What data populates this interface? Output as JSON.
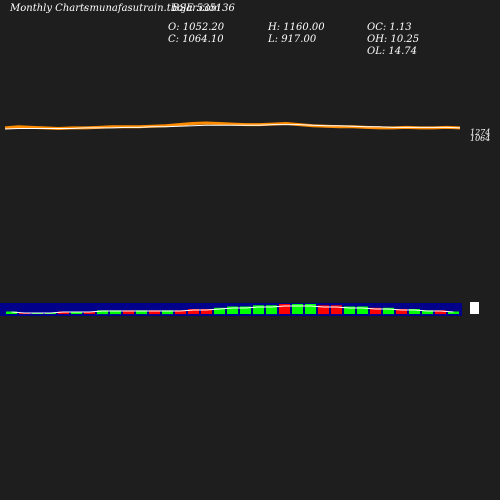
{
  "header": {
    "title": "Monthly Charts",
    "source": "- munafasutrain.tbojar.com",
    "symbol": "BSE 535136",
    "open": "O: 1052.20",
    "close": "C: 1064.10",
    "high": "H: 1160.00",
    "low": "L: 917.00",
    "oc": "OC: 1.13",
    "oh": "OH: 10.25",
    "ol": "OL: 14.74"
  },
  "right_labels": {
    "price_a": "1274",
    "price_b": "1064"
  },
  "colors": {
    "background": "#1e1e1e",
    "price_line": "#ff8c00",
    "ma_line": "#ffffff",
    "band": "#00008b",
    "up": "#00ff00",
    "down": "#ff0000"
  },
  "chart_data": [
    {
      "type": "line",
      "title": "",
      "series": [
        {
          "name": "",
          "values": [
            1064,
            1066,
            1065,
            1064,
            1063,
            1064,
            1064,
            1065,
            1066,
            1066,
            1066,
            1067,
            1068,
            1070,
            1072,
            1073,
            1072,
            1071,
            1070,
            1070,
            1071,
            1072,
            1070,
            1068,
            1067,
            1066,
            1066,
            1065,
            1064,
            1064,
            1065,
            1064,
            1064,
            1065,
            1064
          ]
        },
        {
          "name": "",
          "values": [
            1062,
            1063,
            1063,
            1063,
            1063,
            1063,
            1064,
            1064,
            1064,
            1065,
            1065,
            1066,
            1066,
            1067,
            1068,
            1069,
            1069,
            1069,
            1069,
            1069,
            1070,
            1070,
            1070,
            1069,
            1068,
            1068,
            1067,
            1066,
            1066,
            1065,
            1065,
            1065,
            1065,
            1065,
            1064
          ]
        }
      ]
    },
    {
      "type": "bar",
      "title": "volume",
      "values": [
        2,
        1,
        1,
        1,
        2,
        2,
        2,
        3,
        3,
        3,
        3,
        3,
        3,
        3,
        4,
        4,
        5,
        6,
        6,
        7,
        7,
        8,
        8,
        8,
        7,
        7,
        6,
        6,
        5,
        5,
        4,
        4,
        3,
        3,
        2
      ],
      "direction": [
        "u",
        "d",
        "u",
        "u",
        "d",
        "u",
        "d",
        "u",
        "u",
        "d",
        "u",
        "d",
        "u",
        "d",
        "d",
        "d",
        "u",
        "u",
        "u",
        "u",
        "u",
        "d",
        "u",
        "u",
        "d",
        "d",
        "u",
        "u",
        "d",
        "u",
        "d",
        "u",
        "u",
        "d",
        "u"
      ]
    }
  ]
}
